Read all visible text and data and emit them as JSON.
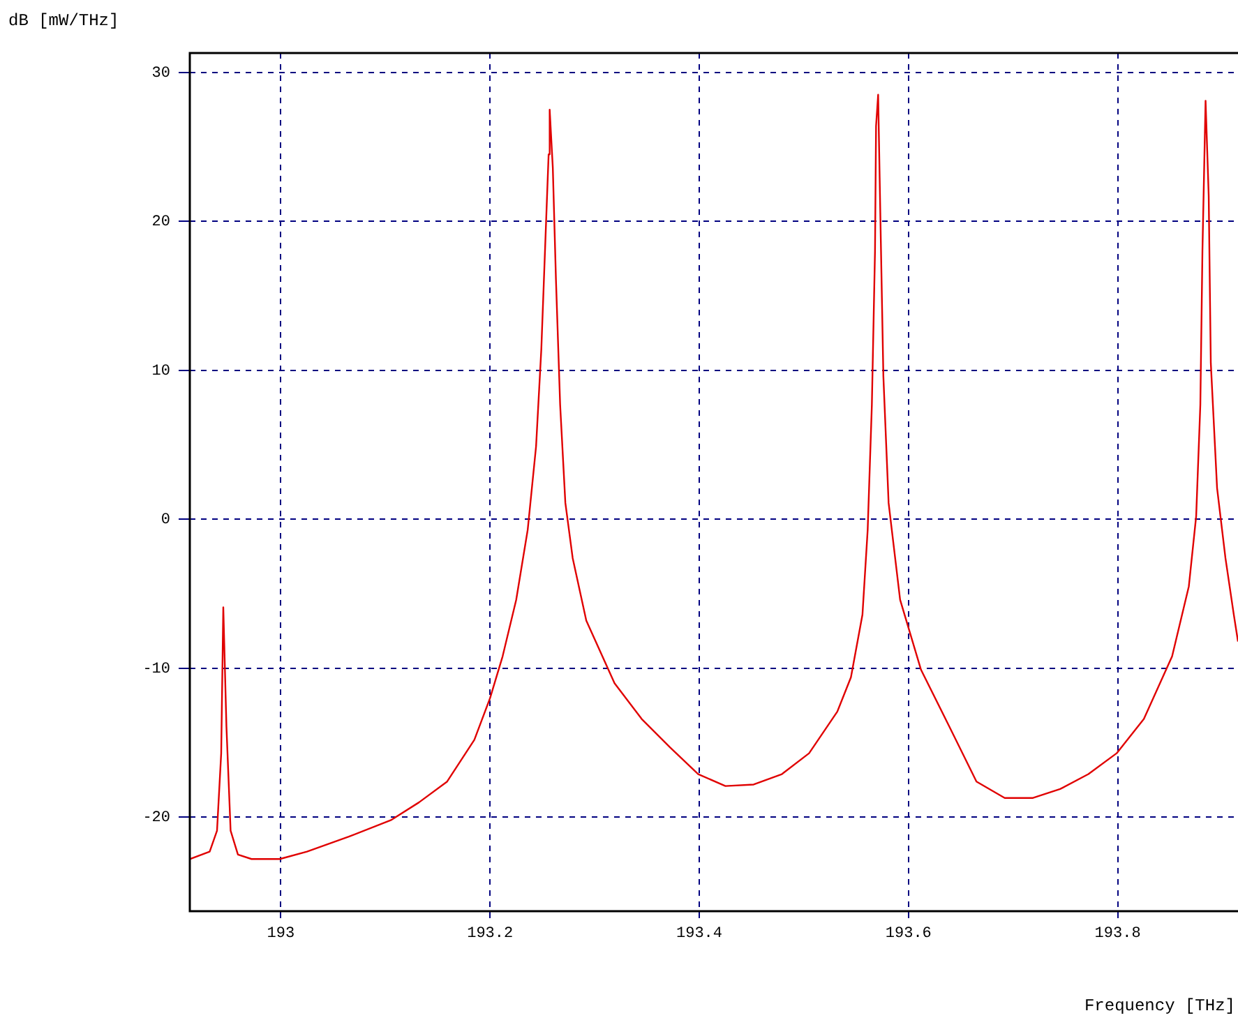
{
  "chart_data": {
    "type": "line",
    "xlabel": "Frequency [THz]",
    "ylabel": "dB [mW/THz]",
    "xlim": [
      192.913,
      193.915
    ],
    "ylim": [
      -26.3,
      31.3
    ],
    "xticks": [
      193,
      193.2,
      193.4,
      193.6,
      193.8
    ],
    "yticks": [
      -20,
      -10,
      0,
      10,
      20,
      30
    ],
    "grid": true,
    "legend": false,
    "marker": "none",
    "line_style": "solid",
    "series": [
      {
        "color": "#e00000",
        "x": [
          192.913,
          192.932,
          192.939,
          192.943,
          192.945,
          192.948,
          192.952,
          192.959,
          192.972,
          192.999,
          193.025,
          193.065,
          193.105,
          193.132,
          193.159,
          193.185,
          193.2,
          193.212,
          193.225,
          193.236,
          193.244,
          193.249,
          193.253,
          193.256,
          193.257,
          193.26,
          193.263,
          193.267,
          193.272,
          193.279,
          193.292,
          193.319,
          193.345,
          193.372,
          193.399,
          193.425,
          193.452,
          193.479,
          193.505,
          193.532,
          193.545,
          193.556,
          193.561,
          193.565,
          193.568,
          193.569,
          193.571,
          193.573,
          193.576,
          193.581,
          193.592,
          193.612,
          193.639,
          193.665,
          193.692,
          193.719,
          193.745,
          193.772,
          193.799,
          193.825,
          193.852,
          193.868,
          193.875,
          193.879,
          193.881,
          193.884,
          193.887,
          193.889,
          193.895,
          193.903,
          193.911,
          193.915
        ],
        "values": [
          -22.8,
          -22.3,
          -20.9,
          -15.7,
          -5.9,
          -13.9,
          -20.9,
          -22.5,
          -22.8,
          -22.8,
          -22.3,
          -21.3,
          -20.2,
          -19.0,
          -17.6,
          -14.8,
          -12.0,
          -9.2,
          -5.4,
          -0.7,
          4.9,
          11.4,
          18.9,
          24.5,
          27.5,
          23.6,
          16.1,
          7.7,
          1.1,
          -2.6,
          -6.8,
          -11.0,
          -13.4,
          -15.3,
          -17.1,
          -17.9,
          -17.8,
          -17.1,
          -15.7,
          -12.9,
          -10.6,
          -6.4,
          -0.7,
          7.7,
          18.0,
          26.4,
          28.5,
          20.8,
          9.6,
          1.1,
          -5.4,
          -10.1,
          -13.9,
          -17.6,
          -18.7,
          -18.7,
          -18.1,
          -17.1,
          -15.7,
          -13.4,
          -9.2,
          -4.5,
          0.2,
          7.7,
          18.0,
          28.1,
          21.7,
          10.5,
          2.1,
          -2.6,
          -6.4,
          -8.2
        ]
      }
    ]
  }
}
